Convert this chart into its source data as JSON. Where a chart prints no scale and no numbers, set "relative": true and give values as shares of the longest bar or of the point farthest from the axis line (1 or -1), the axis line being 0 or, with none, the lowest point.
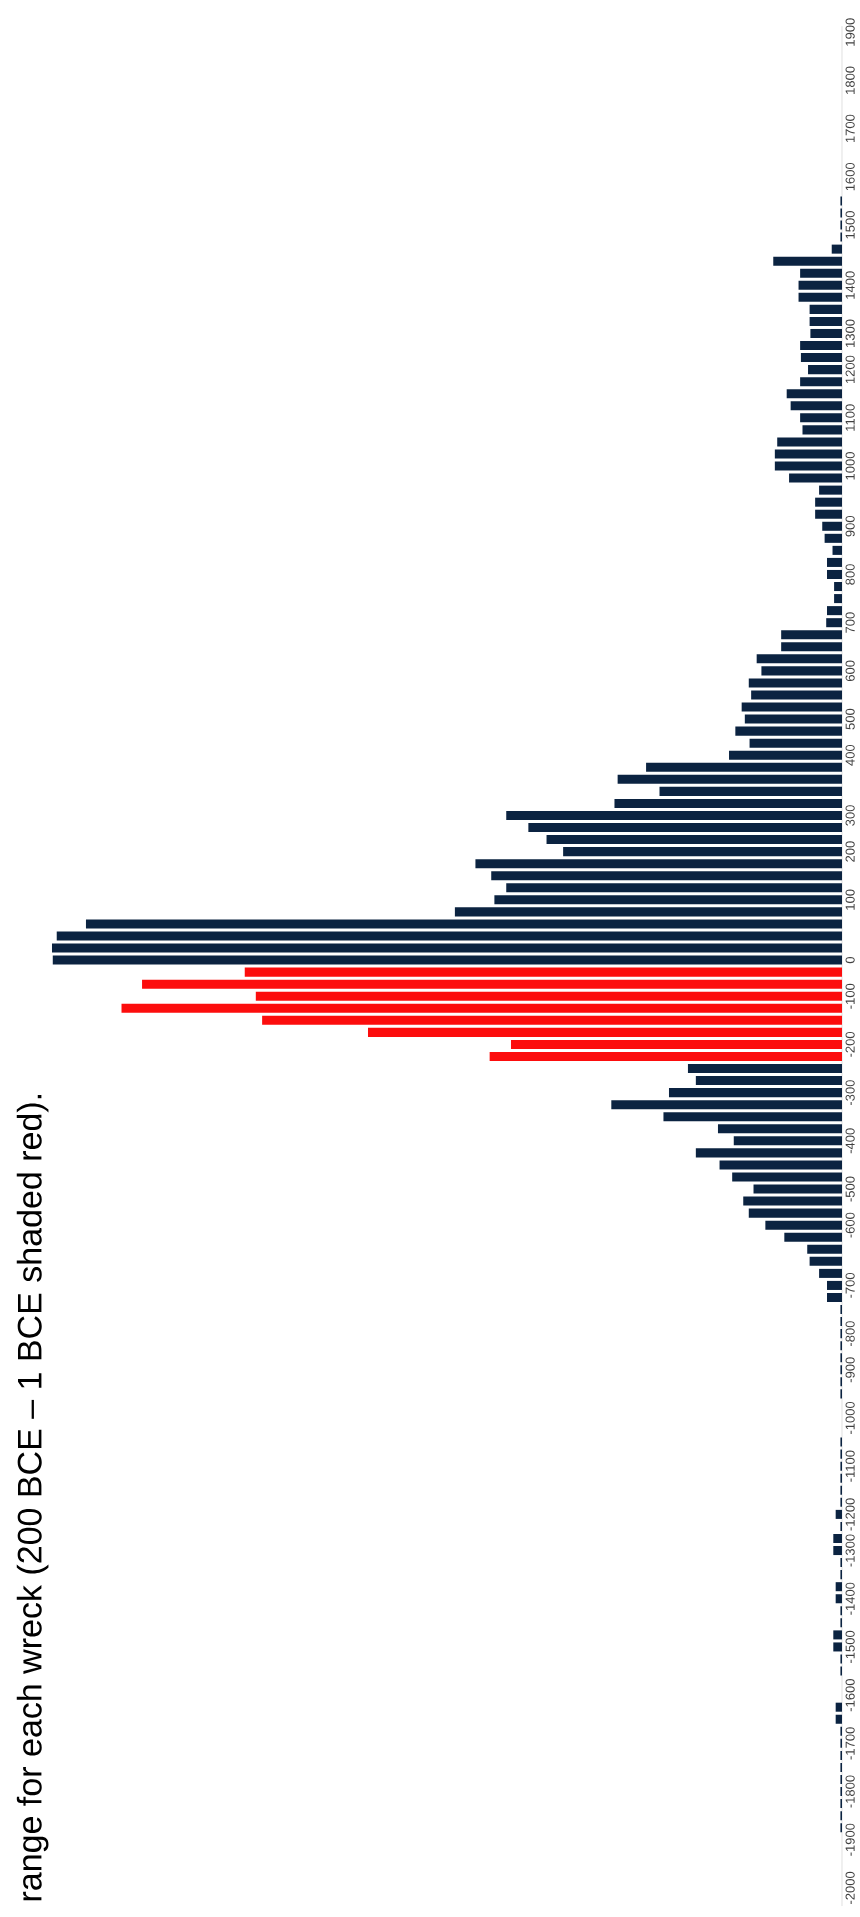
{
  "chart_data": {
    "type": "bar",
    "orientation": "horizontal",
    "relative": true,
    "title": "range for each wreck (200 BCE – 1 BCE shaded red).",
    "categories": [
      "1900",
      null,
      null,
      null,
      "1800",
      null,
      null,
      null,
      "1700",
      null,
      null,
      null,
      "1600",
      null,
      null,
      null,
      "1500",
      null,
      null,
      null,
      null,
      "1400",
      null,
      null,
      null,
      "1300",
      null,
      null,
      "1200",
      null,
      null,
      null,
      "1100",
      null,
      null,
      null,
      "1000",
      null,
      null,
      null,
      null,
      "900",
      null,
      null,
      null,
      "800",
      null,
      null,
      null,
      "700",
      null,
      null,
      null,
      "600",
      null,
      null,
      null,
      "500",
      null,
      null,
      "400",
      null,
      null,
      null,
      null,
      "300",
      null,
      null,
      "200",
      null,
      null,
      null,
      "100",
      null,
      null,
      null,
      null,
      "0",
      null,
      null,
      "-100",
      null,
      null,
      null,
      "-200",
      null,
      null,
      null,
      "-300",
      null,
      null,
      null,
      "-400",
      null,
      null,
      null,
      "-500",
      null,
      null,
      "-600",
      null,
      null,
      null,
      null,
      "-700",
      null,
      null,
      null,
      "-800",
      null,
      null,
      "-900",
      null,
      null,
      null,
      "-1000",
      null,
      null,
      null,
      "-1100",
      null,
      null,
      null,
      "-1200",
      null,
      null,
      "-1300",
      null,
      null,
      null,
      "-1400",
      null,
      null,
      null,
      "-1500",
      null,
      null,
      null,
      "-1600",
      null,
      null,
      null,
      "-1700",
      null,
      null,
      null,
      "-1800",
      null,
      null,
      null,
      "-1900",
      null,
      null,
      null,
      "-2000",
      null
    ],
    "values": [
      null,
      null,
      null,
      null,
      null,
      null,
      null,
      null,
      null,
      null,
      null,
      null,
      null,
      null,
      0.002,
      0.002,
      0.002,
      0.002,
      0.013,
      0.087,
      0.053,
      0.055,
      0.055,
      0.041,
      0.041,
      0.04,
      0.053,
      0.052,
      0.043,
      0.053,
      0.07,
      0.065,
      0.053,
      0.05,
      0.082,
      0.085,
      0.085,
      0.067,
      0.029,
      0.034,
      0.034,
      0.025,
      0.022,
      0.012,
      0.019,
      0.019,
      0.01,
      0.01,
      0.019,
      0.02,
      0.077,
      0.077,
      0.108,
      0.102,
      0.118,
      0.115,
      0.127,
      0.123,
      0.135,
      0.117,
      0.143,
      0.248,
      0.284,
      0.231,
      0.288,
      0.425,
      0.397,
      0.374,
      0.353,
      0.464,
      0.444,
      0.425,
      0.44,
      0.49,
      0.957,
      0.994,
      1,
      0.999,
      0.756,
      0.886,
      0.742,
      0.912,
      0.734,
      0.6,
      0.419,
      0.446,
      0.195,
      0.185,
      0.219,
      0.292,
      0.226,
      0.157,
      0.137,
      0.185,
      0.155,
      0.139,
      0.112,
      0.125,
      0.118,
      0.097,
      0.073,
      0.044,
      0.041,
      0.029,
      0.019,
      0.019,
      0.002,
      0.002,
      0.002,
      0.002,
      0.002,
      0.002,
      0.002,
      0.002,
      null,
      null,
      null,
      0.002,
      0.002,
      0.002,
      0.002,
      0.002,
      0.002,
      0.008,
      0.002,
      0.011,
      0.011,
      0.002,
      0.002,
      0.008,
      0.008,
      0.002,
      0.002,
      0.011,
      0.011,
      0.002,
      0.002,
      null,
      null,
      0.008,
      0.008,
      0.002,
      0.002,
      0.002,
      0.002,
      0.002,
      0.002,
      0.002,
      0.002,
      0.002,
      null,
      null,
      null,
      null,
      null,
      null
    ],
    "colors": [
      "#0b2341",
      "#0b2341",
      "#0b2341",
      "#0b2341",
      "#0b2341",
      "#0b2341",
      "#0b2341",
      "#0b2341",
      "#0b2341",
      "#0b2341",
      "#0b2341",
      "#0b2341",
      "#0b2341",
      "#0b2341",
      "#0b2341",
      "#0b2341",
      "#0b2341",
      "#0b2341",
      "#0b2341",
      "#0b2341",
      "#0b2341",
      "#0b2341",
      "#0b2341",
      "#0b2341",
      "#0b2341",
      "#0b2341",
      "#0b2341",
      "#0b2341",
      "#0b2341",
      "#0b2341",
      "#0b2341",
      "#0b2341",
      "#0b2341",
      "#0b2341",
      "#0b2341",
      "#0b2341",
      "#0b2341",
      "#0b2341",
      "#0b2341",
      "#0b2341",
      "#0b2341",
      "#0b2341",
      "#0b2341",
      "#0b2341",
      "#0b2341",
      "#0b2341",
      "#0b2341",
      "#0b2341",
      "#0b2341",
      "#0b2341",
      "#0b2341",
      "#0b2341",
      "#0b2341",
      "#0b2341",
      "#0b2341",
      "#0b2341",
      "#0b2341",
      "#0b2341",
      "#0b2341",
      "#0b2341",
      "#0b2341",
      "#0b2341",
      "#0b2341",
      "#0b2341",
      "#0b2341",
      "#0b2341",
      "#0b2341",
      "#0b2341",
      "#0b2341",
      "#0b2341",
      "#0b2341",
      "#0b2341",
      "#0b2341",
      "#0b2341",
      "#0b2341",
      "#0b2341",
      "#0b2341",
      "#0b2341",
      "#fc0d0d",
      "#fc0d0d",
      "#fc0d0d",
      "#fc0d0d",
      "#fc0d0d",
      "#fc0d0d",
      "#fc0d0d",
      "#fc0d0d",
      "#0b2341",
      "#0b2341",
      "#0b2341",
      "#0b2341",
      "#0b2341",
      "#0b2341",
      "#0b2341",
      "#0b2341",
      "#0b2341",
      "#0b2341",
      "#0b2341",
      "#0b2341",
      "#0b2341",
      "#0b2341",
      "#0b2341",
      "#0b2341",
      "#0b2341",
      "#0b2341",
      "#0b2341",
      "#0b2341",
      "#0b2341",
      "#0b2341",
      "#0b2341",
      "#0b2341",
      "#0b2341",
      "#0b2341",
      "#0b2341",
      "#0b2341",
      "#0b2341",
      "#0b2341",
      "#0b2341",
      "#0b2341",
      "#0b2341",
      "#0b2341",
      "#0b2341",
      "#0b2341",
      "#0b2341",
      "#0b2341",
      "#0b2341",
      "#0b2341",
      "#0b2341",
      "#0b2341",
      "#0b2341",
      "#0b2341",
      "#0b2341",
      "#0b2341",
      "#0b2341",
      "#0b2341",
      "#0b2341",
      "#0b2341",
      "#0b2341",
      "#0b2341",
      "#0b2341",
      "#0b2341",
      "#0b2341",
      "#0b2341",
      "#0b2341",
      "#0b2341",
      "#0b2341",
      "#0b2341",
      "#0b2341",
      "#0b2341",
      "#0b2341",
      "#0b2341",
      "#0b2341",
      "#0b2341",
      "#0b2341",
      "#0b2341",
      "#0b2341",
      "#0b2341"
    ]
  }
}
